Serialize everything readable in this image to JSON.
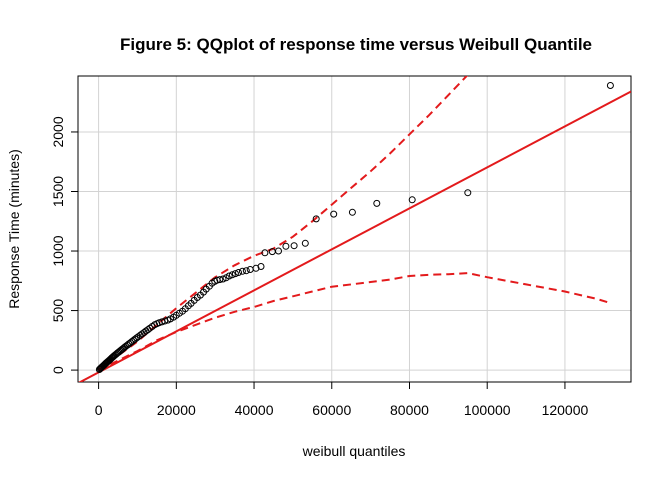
{
  "chart_data": {
    "type": "scatter",
    "title": "Figure 5: QQplot of response time versus Weibull Quantile",
    "xlabel": "weibull quantiles",
    "ylabel": "Response Time (minutes)",
    "xlim": [
      -5300,
      137000
    ],
    "ylim": [
      -100,
      2470
    ],
    "xticks": [
      0,
      20000,
      40000,
      60000,
      80000,
      100000,
      120000
    ],
    "yticks": [
      0,
      500,
      1000,
      1500,
      2000
    ],
    "xtick_labels": [
      "0",
      "20000",
      "40000",
      "60000",
      "80000",
      "100000",
      "120000"
    ],
    "ytick_labels": [
      "0",
      "500",
      "1000",
      "1500",
      "2000"
    ],
    "grid": true,
    "colors": {
      "points": "#000000",
      "reference": "#e31a1c",
      "grid": "#d3d3d3"
    },
    "points": [
      [
        200,
        5
      ],
      [
        400,
        12
      ],
      [
        600,
        18
      ],
      [
        800,
        24
      ],
      [
        1000,
        30
      ],
      [
        1200,
        36
      ],
      [
        1400,
        42
      ],
      [
        1600,
        48
      ],
      [
        1800,
        55
      ],
      [
        2000,
        60
      ],
      [
        2200,
        66
      ],
      [
        2400,
        72
      ],
      [
        2600,
        78
      ],
      [
        2800,
        84
      ],
      [
        3000,
        90
      ],
      [
        3200,
        96
      ],
      [
        3400,
        102
      ],
      [
        3600,
        108
      ],
      [
        3800,
        114
      ],
      [
        4000,
        120
      ],
      [
        4300,
        128
      ],
      [
        4600,
        136
      ],
      [
        4900,
        144
      ],
      [
        5200,
        152
      ],
      [
        5500,
        160
      ],
      [
        5800,
        168
      ],
      [
        6100,
        176
      ],
      [
        6400,
        184
      ],
      [
        6700,
        192
      ],
      [
        7000,
        200
      ],
      [
        7400,
        210
      ],
      [
        7800,
        220
      ],
      [
        8200,
        230
      ],
      [
        8600,
        240
      ],
      [
        9000,
        250
      ],
      [
        9400,
        260
      ],
      [
        9800,
        270
      ],
      [
        10200,
        280
      ],
      [
        10700,
        292
      ],
      [
        11200,
        304
      ],
      [
        11700,
        316
      ],
      [
        12200,
        328
      ],
      [
        12700,
        340
      ],
      [
        13200,
        352
      ],
      [
        13800,
        366
      ],
      [
        14400,
        380
      ],
      [
        15000,
        390
      ],
      [
        15600,
        398
      ],
      [
        16300,
        405
      ],
      [
        17000,
        412
      ],
      [
        17800,
        420
      ],
      [
        18500,
        430
      ],
      [
        19300,
        445
      ],
      [
        20000,
        460
      ],
      [
        20800,
        478
      ],
      [
        21600,
        495
      ],
      [
        22300,
        515
      ],
      [
        23100,
        540
      ],
      [
        23800,
        560
      ],
      [
        24600,
        585
      ],
      [
        25400,
        610
      ],
      [
        26200,
        630
      ],
      [
        27000,
        655
      ],
      [
        27700,
        680
      ],
      [
        28500,
        705
      ],
      [
        29200,
        730
      ],
      [
        29900,
        745
      ],
      [
        30500,
        755
      ],
      [
        31200,
        760
      ],
      [
        32000,
        765
      ],
      [
        32800,
        775
      ],
      [
        33600,
        790
      ],
      [
        34400,
        800
      ],
      [
        35200,
        810
      ],
      [
        36000,
        820
      ],
      [
        37000,
        830
      ],
      [
        38000,
        835
      ],
      [
        39000,
        845
      ],
      [
        40500,
        855
      ],
      [
        41800,
        870
      ],
      [
        42800,
        985
      ],
      [
        44700,
        995
      ],
      [
        46300,
        1000
      ],
      [
        48200,
        1040
      ],
      [
        50300,
        1045
      ],
      [
        53200,
        1065
      ],
      [
        56000,
        1270
      ],
      [
        60500,
        1310
      ],
      [
        65300,
        1325
      ],
      [
        71600,
        1400
      ],
      [
        80700,
        1430
      ],
      [
        95000,
        1490
      ],
      [
        131700,
        2390
      ]
    ],
    "reference_line": {
      "points": [
        [
          -5300,
          -110
        ],
        [
          137000,
          2340
        ]
      ]
    },
    "upper_band": {
      "points": [
        [
          0,
          5
        ],
        [
          5000,
          120
        ],
        [
          10000,
          240
        ],
        [
          15000,
          380
        ],
        [
          20000,
          520
        ],
        [
          25000,
          650
        ],
        [
          30000,
          780
        ],
        [
          35000,
          880
        ],
        [
          40000,
          960
        ],
        [
          45000,
          1020
        ],
        [
          50000,
          1120
        ],
        [
          55000,
          1250
        ],
        [
          60000,
          1390
        ],
        [
          65000,
          1530
        ],
        [
          70000,
          1670
        ],
        [
          75000,
          1820
        ],
        [
          80000,
          1980
        ],
        [
          85000,
          2140
        ],
        [
          90000,
          2310
        ],
        [
          95000,
          2480
        ]
      ]
    },
    "lower_band": {
      "points": [
        [
          0,
          0
        ],
        [
          5000,
          80
        ],
        [
          10000,
          160
        ],
        [
          15000,
          250
        ],
        [
          20000,
          320
        ],
        [
          25000,
          380
        ],
        [
          30000,
          440
        ],
        [
          35000,
          490
        ],
        [
          40000,
          530
        ],
        [
          45000,
          580
        ],
        [
          50000,
          620
        ],
        [
          55000,
          660
        ],
        [
          60000,
          700
        ],
        [
          65000,
          720
        ],
        [
          70000,
          740
        ],
        [
          75000,
          760
        ],
        [
          80000,
          790
        ],
        [
          85000,
          800
        ],
        [
          90000,
          805
        ],
        [
          95000,
          815
        ],
        [
          100000,
          780
        ],
        [
          110000,
          720
        ],
        [
          120000,
          660
        ],
        [
          128000,
          600
        ],
        [
          132000,
          560
        ]
      ]
    }
  }
}
